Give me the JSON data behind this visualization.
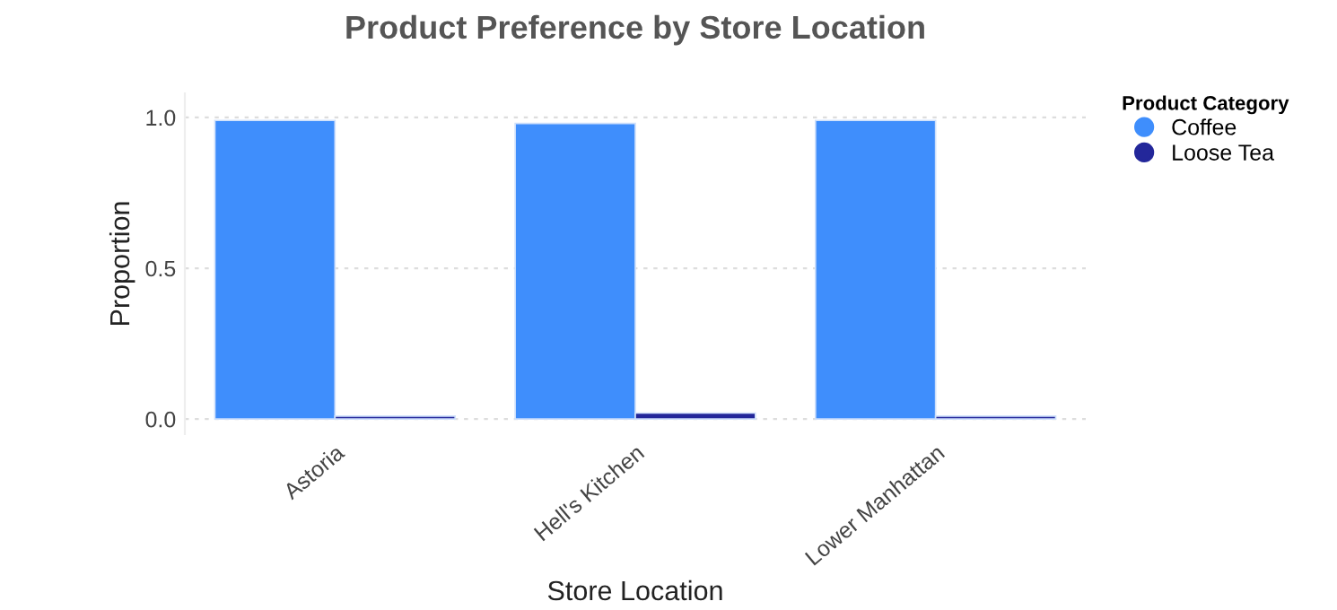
{
  "chart_data": {
    "type": "bar",
    "title": "Product Preference by Store Location",
    "xlabel": "Store Location",
    "ylabel": "Proportion",
    "legend_title": "Product Category",
    "categories": [
      "Astoria",
      "Hell's Kitchen",
      "Lower Manhattan"
    ],
    "series": [
      {
        "name": "Coffee",
        "color": "#3f8efc",
        "values": [
          0.99,
          0.98,
          0.99
        ]
      },
      {
        "name": "Loose Tea",
        "color": "#23279a",
        "values": [
          0.01,
          0.02,
          0.01
        ]
      }
    ],
    "ylim": [
      -0.05,
      1.08
    ],
    "yticks": [
      {
        "value": 0,
        "label": "0.0"
      },
      0.5,
      {
        "value": 1,
        "label": "1.0"
      }
    ],
    "grid": "y",
    "legend": "right"
  }
}
